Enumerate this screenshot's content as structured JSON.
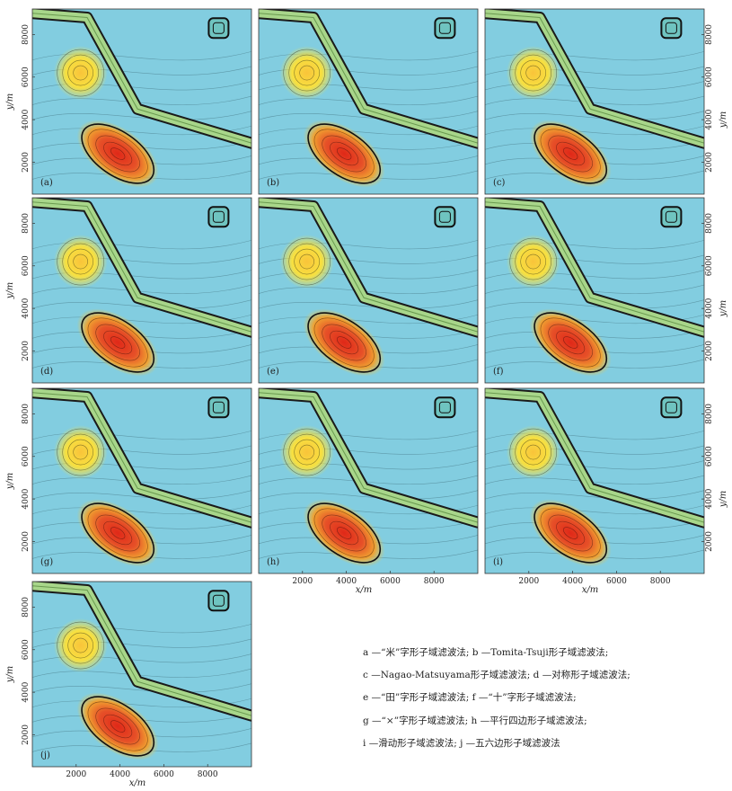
{
  "chart_data": {
    "type": "heatmap",
    "description_axes": {
      "xlabel": "x/m",
      "ylabel": "y/m"
    },
    "xlim": [
      0,
      10000
    ],
    "ylim": [
      500,
      9200
    ],
    "x_ticks": [
      2000,
      4000,
      6000,
      8000
    ],
    "y_ticks": [
      2000,
      4000,
      6000,
      8000
    ],
    "grid": false,
    "colors": {
      "background": "#82cde0",
      "ridge": "#a8d68a",
      "yellow": "#f7e040",
      "red": "#e03020",
      "contour": "#1a1a1a"
    },
    "panels": [
      {
        "label": "(a)",
        "filter": "a"
      },
      {
        "label": "(b)",
        "filter": "b"
      },
      {
        "label": "(c)",
        "filter": "c"
      },
      {
        "label": "(d)",
        "filter": "d"
      },
      {
        "label": "(e)",
        "filter": "e"
      },
      {
        "label": "(f)",
        "filter": "f"
      },
      {
        "label": "(g)",
        "filter": "g"
      },
      {
        "label": "(h)",
        "filter": "h"
      },
      {
        "label": "(i)",
        "filter": "i"
      },
      {
        "label": "(j)",
        "filter": "j"
      }
    ],
    "anomalies": [
      {
        "kind": "circular-high",
        "center": [
          2200,
          6200
        ],
        "color": "yellow"
      },
      {
        "kind": "elongated-high",
        "center": [
          3900,
          2400
        ],
        "color": "red"
      },
      {
        "kind": "linear-ridge",
        "path": [
          [
            0,
            9000
          ],
          [
            2500,
            8800
          ],
          [
            4800,
            4500
          ],
          [
            10000,
            2900
          ]
        ],
        "color": "green"
      },
      {
        "kind": "small-square",
        "center": [
          8500,
          8300
        ],
        "color": "teal"
      }
    ]
  },
  "legend_lines": [
    "a —“米”字形子域滤波法; b —Tomita-Tsuji形子域滤波法;",
    "c —Nagao-Matsuyama形子域滤波法;   d —对称形子域滤波法;",
    "e —“田”字形子域滤波法; f —“十”字形子域滤波法;",
    "g —“×”字形子域滤波法; h —平行四边形子域滤波法;",
    "i —滑动形子域滤波法;   j —五六边形子域滤波法"
  ],
  "axis_text": {
    "x": "x/m",
    "y": "y/m"
  }
}
